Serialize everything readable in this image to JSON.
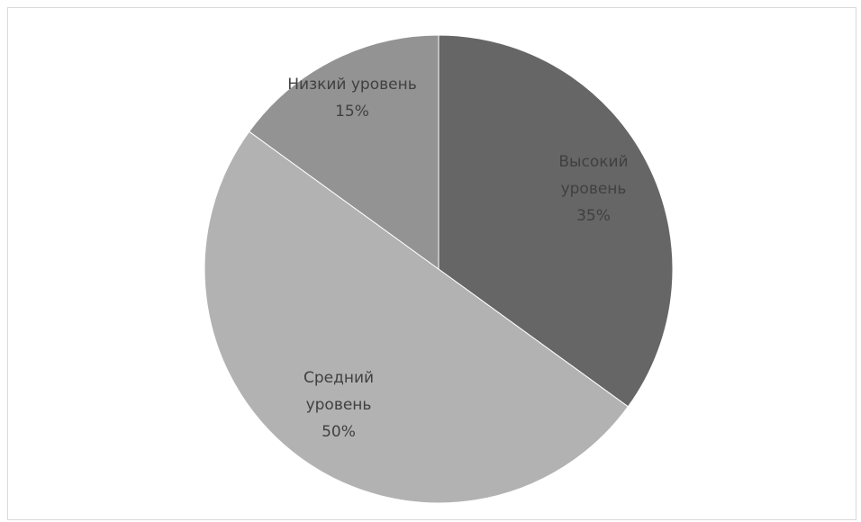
{
  "chart_data": {
    "type": "pie",
    "title": "",
    "slices": [
      {
        "name": "Высокий уровень",
        "value": 35,
        "color": "#666666",
        "label_lines": [
          "Высокий",
          "уровень",
          "35%"
        ]
      },
      {
        "name": "Средний уровень",
        "value": 50,
        "color": "#b2b2b2",
        "label_lines": [
          "Средний",
          "уровень",
          "50%"
        ]
      },
      {
        "name": "Низкий уровень",
        "value": 15,
        "color": "#939393",
        "label_lines": [
          "Низкий уровень",
          "15%"
        ]
      }
    ],
    "legend": "none"
  }
}
